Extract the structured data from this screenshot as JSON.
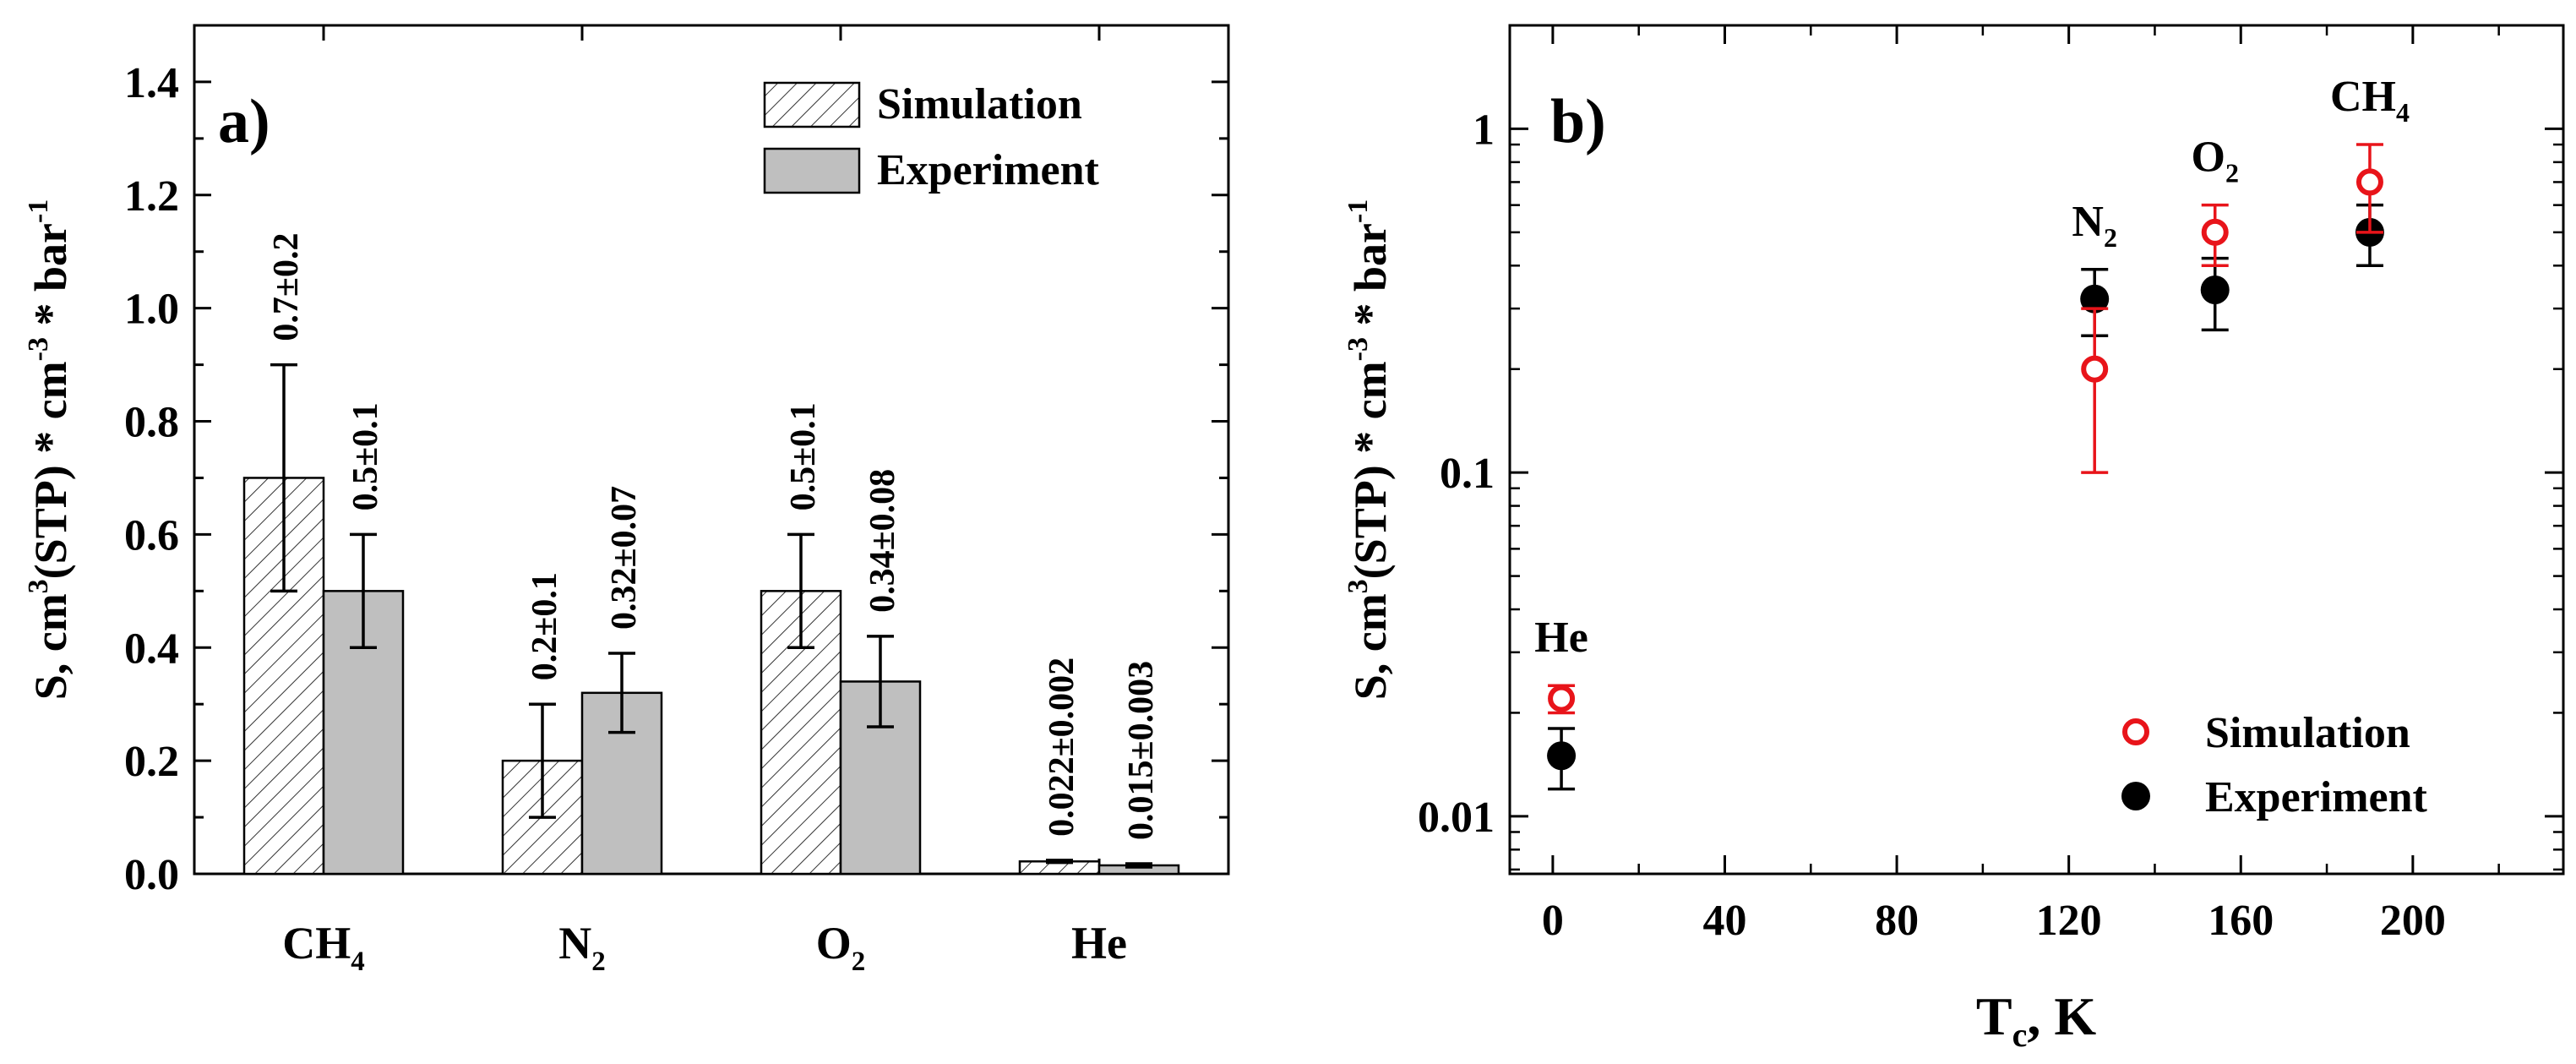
{
  "chart_data": [
    {
      "type": "bar",
      "panel_label": "a)",
      "title": "",
      "xlabel": "",
      "ylabel": {
        "base": "S, cm",
        "sup1": "3",
        "mid1": "(STP) * cm",
        "sup2": "-3",
        "mid2": " * bar",
        "sup3": "-1"
      },
      "ylim": [
        0,
        1.5
      ],
      "yticks": [
        "0.0",
        "0.2",
        "0.4",
        "0.6",
        "0.8",
        "1.0",
        "1.2",
        "1.4"
      ],
      "categories": [
        {
          "base": "CH",
          "sub": "4"
        },
        {
          "base": "N",
          "sub": "2"
        },
        {
          "base": "O",
          "sub": "2"
        },
        {
          "base": "He",
          "sub": ""
        }
      ],
      "series": [
        {
          "name": "Simulation",
          "pattern": "hatched",
          "values": [
            0.7,
            0.2,
            0.5,
            0.022
          ],
          "errors": [
            0.2,
            0.1,
            0.1,
            0.002
          ],
          "labels": [
            "0.7±0.2",
            "0.2±0.1",
            "0.5±0.1",
            "0.022±0.002"
          ]
        },
        {
          "name": "Experiment",
          "pattern": "gray",
          "values": [
            0.5,
            0.32,
            0.34,
            0.015
          ],
          "errors": [
            0.1,
            0.07,
            0.08,
            0.003
          ],
          "labels": [
            "0.5±0.1",
            "0.32±0.07",
            "0.34±0.08",
            "0.015±0.003"
          ]
        }
      ],
      "legend": {
        "placement": "top-right",
        "entries": [
          "Simulation",
          "Experiment"
        ]
      }
    },
    {
      "type": "scatter",
      "panel_label": "b)",
      "title": "",
      "xlabel": {
        "base": "T",
        "sub": "c",
        "rest": ", K"
      },
      "ylabel": {
        "base": "S, cm",
        "sup1": "3",
        "mid1": "(STP) * cm",
        "sup2": "-3",
        "mid2": " * bar",
        "sup3": "-1"
      },
      "xlim": [
        -10,
        235
      ],
      "ylim_log": [
        0.0068,
        2.0
      ],
      "yscale": "log",
      "xticks": [
        "0",
        "40",
        "80",
        "120",
        "160",
        "200"
      ],
      "yticks": [
        "0.01",
        "0.1",
        "1"
      ],
      "series": [
        {
          "name": "Simulation",
          "color": "#e8141a",
          "marker": "open-circle",
          "points": [
            {
              "x": 2,
              "y": 0.022,
              "lo": 0.02,
              "hi": 0.024
            },
            {
              "x": 126,
              "y": 0.2,
              "lo": 0.1,
              "hi": 0.3
            },
            {
              "x": 154,
              "y": 0.5,
              "lo": 0.4,
              "hi": 0.6
            },
            {
              "x": 190,
              "y": 0.7,
              "lo": 0.5,
              "hi": 0.9
            }
          ]
        },
        {
          "name": "Experiment",
          "color": "#000000",
          "marker": "filled-circle",
          "points": [
            {
              "x": 2,
              "y": 0.015,
              "lo": 0.012,
              "hi": 0.018
            },
            {
              "x": 126,
              "y": 0.32,
              "lo": 0.25,
              "hi": 0.39
            },
            {
              "x": 154,
              "y": 0.34,
              "lo": 0.26,
              "hi": 0.42
            },
            {
              "x": 190,
              "y": 0.5,
              "lo": 0.4,
              "hi": 0.6
            }
          ]
        }
      ],
      "annotations": [
        {
          "base": "He",
          "sub": ""
        },
        {
          "base": "N",
          "sub": "2"
        },
        {
          "base": "O",
          "sub": "2"
        },
        {
          "base": "CH",
          "sub": "4"
        }
      ],
      "legend": {
        "placement": "bottom-right",
        "entries": [
          "Simulation",
          "Experiment"
        ]
      }
    }
  ]
}
